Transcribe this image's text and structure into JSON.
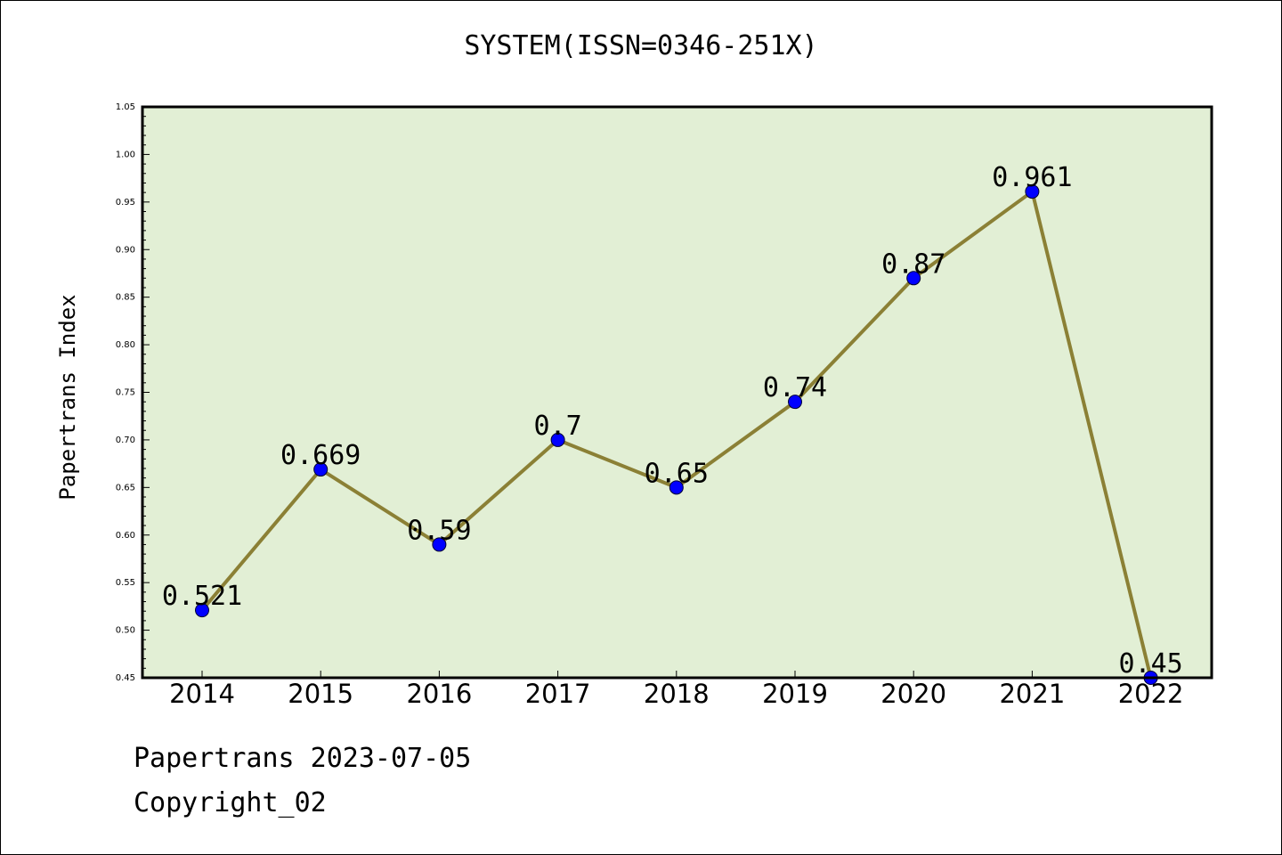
{
  "chart_data": {
    "type": "line",
    "title": "SYSTEM(ISSN=0346-251X)",
    "ylabel": "Papertrans Index",
    "xlabel": "",
    "categories": [
      "2014",
      "2015",
      "2016",
      "2017",
      "2018",
      "2019",
      "2020",
      "2021",
      "2022"
    ],
    "values": [
      0.521,
      0.669,
      0.59,
      0.7,
      0.65,
      0.74,
      0.87,
      0.961,
      0.45
    ],
    "data_labels": [
      "0.521",
      "0.669",
      "0.59",
      "0.7",
      "0.65",
      "0.74",
      "0.87",
      "0.961",
      "0.45"
    ],
    "ylim": [
      0.45,
      1.05
    ],
    "yticks": [
      "0.45",
      "0.50",
      "0.55",
      "0.60",
      "0.65",
      "0.70",
      "0.75",
      "0.80",
      "0.85",
      "0.90",
      "0.95",
      "1.00",
      "1.05"
    ],
    "grid": false,
    "colors": {
      "plot_background": "#e2efd5",
      "line": "#8b8035",
      "marker": "#0000ff"
    }
  },
  "footer": {
    "line1": "Papertrans 2023-07-05",
    "line2": "Copyright_02"
  }
}
